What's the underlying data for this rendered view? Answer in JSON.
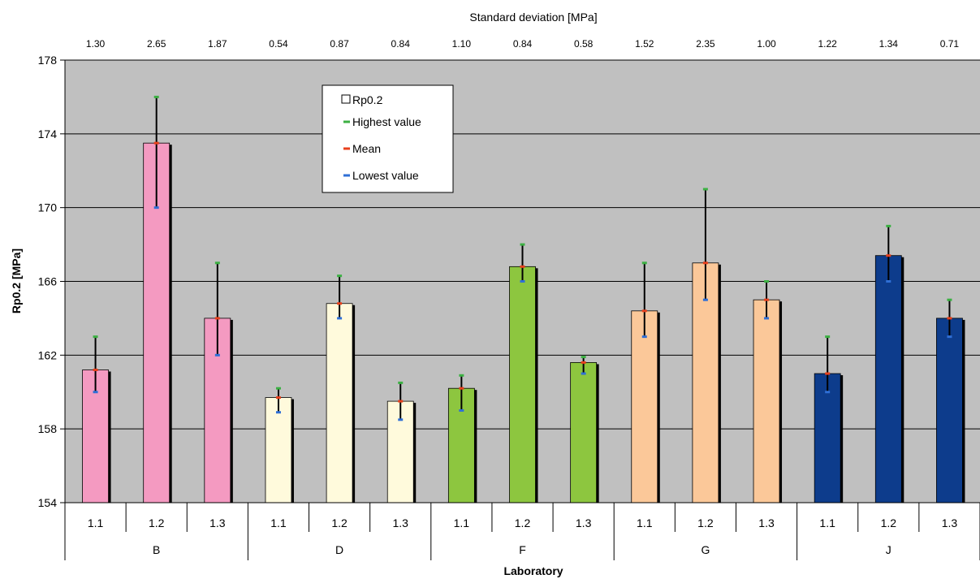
{
  "chart_data": {
    "type": "bar",
    "top_title": "Standard deviation [MPa]",
    "ylabel": "Rp0.2 [MPa]",
    "xlabel": "Laboratory",
    "ylim": [
      154,
      178
    ],
    "yticks": [
      "154",
      "158",
      "162",
      "166",
      "170",
      "174",
      "178"
    ],
    "grid": true,
    "legend_position": "top-center",
    "legend": [
      "Rp0.2",
      "Highest value",
      "Mean",
      "Lowest value"
    ],
    "groups": [
      {
        "name": "B",
        "color": "#f49ac1",
        "bars": [
          {
            "label": "1.1",
            "mean": 161.2,
            "high": 163.0,
            "low": 160.0,
            "sd": "1.30"
          },
          {
            "label": "1.2",
            "mean": 173.5,
            "high": 176.0,
            "low": 170.0,
            "sd": "2.65"
          },
          {
            "label": "1.3",
            "mean": 164.0,
            "high": 167.0,
            "low": 162.0,
            "sd": "1.87"
          }
        ]
      },
      {
        "name": "D",
        "color": "#fffadc",
        "bars": [
          {
            "label": "1.1",
            "mean": 159.7,
            "high": 160.2,
            "low": 158.9,
            "sd": "0.54"
          },
          {
            "label": "1.2",
            "mean": 164.8,
            "high": 166.3,
            "low": 164.0,
            "sd": "0.87"
          },
          {
            "label": "1.3",
            "mean": 159.5,
            "high": 160.5,
            "low": 158.5,
            "sd": "0.84"
          }
        ]
      },
      {
        "name": "F",
        "color": "#8dc63f",
        "bars": [
          {
            "label": "1.1",
            "mean": 160.2,
            "high": 160.9,
            "low": 159.0,
            "sd": "1.10"
          },
          {
            "label": "1.2",
            "mean": 166.8,
            "high": 168.0,
            "low": 166.0,
            "sd": "0.84"
          },
          {
            "label": "1.3",
            "mean": 161.6,
            "high": 161.9,
            "low": 161.0,
            "sd": "0.58"
          }
        ]
      },
      {
        "name": "G",
        "color": "#fbc899",
        "bars": [
          {
            "label": "1.1",
            "mean": 164.4,
            "high": 167.0,
            "low": 163.0,
            "sd": "1.52"
          },
          {
            "label": "1.2",
            "mean": 167.0,
            "high": 171.0,
            "low": 165.0,
            "sd": "2.35"
          },
          {
            "label": "1.3",
            "mean": 165.0,
            "high": 166.0,
            "low": 164.0,
            "sd": "1.00"
          }
        ]
      },
      {
        "name": "J",
        "color": "#0d3c8c",
        "bars": [
          {
            "label": "1.1",
            "mean": 161.0,
            "high": 163.0,
            "low": 160.0,
            "sd": "1.22"
          },
          {
            "label": "1.2",
            "mean": 167.4,
            "high": 169.0,
            "low": 166.0,
            "sd": "1.34"
          },
          {
            "label": "1.3",
            "mean": 164.0,
            "high": 165.0,
            "low": 163.0,
            "sd": "0.71"
          }
        ]
      }
    ],
    "colors": {
      "plot_background": "#c0c0c0",
      "gridline": "#000000",
      "highest_marker": "#3cb043",
      "mean_marker": "#e8401c",
      "lowest_marker": "#2f6fd6",
      "error_bar": "#000000"
    }
  }
}
